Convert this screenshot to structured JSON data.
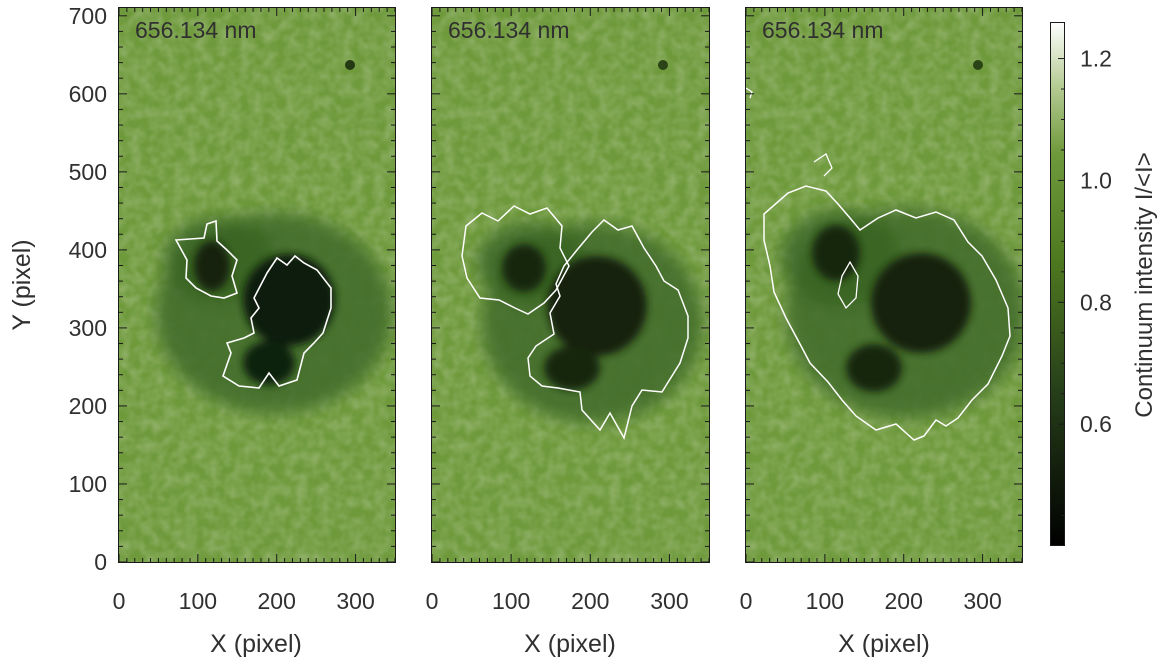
{
  "panels": [
    {
      "id": "p1",
      "label": "656.134 nm"
    },
    {
      "id": "p2",
      "label": "656.134 nm"
    },
    {
      "id": "p3",
      "label": "656.134 nm"
    }
  ],
  "axes": {
    "xlabel": "X (pixel)",
    "ylabel": "Y (pixel)",
    "x_range": [
      0,
      350
    ],
    "y_range": [
      0,
      710
    ],
    "x_ticks": [
      "0",
      "100",
      "200",
      "300"
    ],
    "y_ticks": [
      "0",
      "100",
      "200",
      "300",
      "400",
      "500",
      "600",
      "700"
    ]
  },
  "colorbar": {
    "label": "Continuum intensity I/<I>",
    "range": [
      0.4,
      1.26
    ],
    "ticks": [
      "0.6",
      "0.8",
      "1.0",
      "1.2"
    ],
    "colors": {
      "low": "#000000",
      "mid": "#4f7a1f",
      "field": "#6f9a3c",
      "high": "#ffffff"
    }
  },
  "colors": {
    "contour": "#ffffff",
    "frame": "#1a1a1a"
  }
}
